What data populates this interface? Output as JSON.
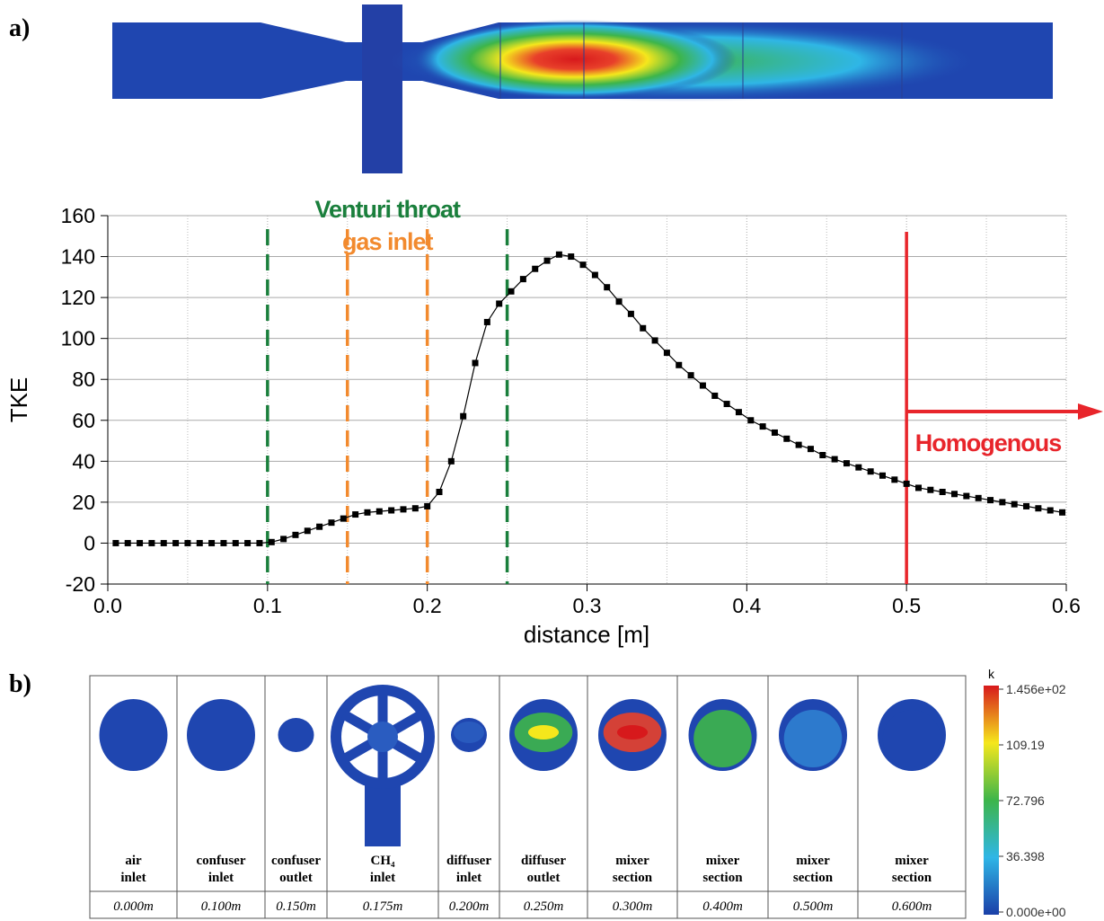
{
  "panel_labels": [
    "a)",
    "b)"
  ],
  "chart_data": {
    "type": "line",
    "x_label": "distance [m]",
    "y_label": "TKE",
    "x": [
      0.005,
      0.0125,
      0.02,
      0.0275,
      0.035,
      0.0425,
      0.05,
      0.0575,
      0.065,
      0.0725,
      0.08,
      0.0875,
      0.095,
      0.1025,
      0.11,
      0.1175,
      0.125,
      0.1325,
      0.14,
      0.1475,
      0.155,
      0.1625,
      0.17,
      0.1775,
      0.185,
      0.1925,
      0.2,
      0.2075,
      0.215,
      0.2225,
      0.23,
      0.2375,
      0.245,
      0.2525,
      0.26,
      0.2675,
      0.275,
      0.2825,
      0.29,
      0.2975,
      0.305,
      0.3125,
      0.32,
      0.3275,
      0.335,
      0.3425,
      0.35,
      0.3575,
      0.365,
      0.3725,
      0.38,
      0.3875,
      0.395,
      0.4025,
      0.41,
      0.4175,
      0.425,
      0.4325,
      0.44,
      0.4475,
      0.455,
      0.4625,
      0.47,
      0.4775,
      0.485,
      0.4925,
      0.5,
      0.5075,
      0.515,
      0.5225,
      0.53,
      0.5375,
      0.545,
      0.5525,
      0.56,
      0.5675,
      0.575,
      0.5825,
      0.59,
      0.5975
    ],
    "values": [
      0,
      0,
      0,
      0,
      0,
      0,
      0,
      0,
      0,
      0,
      0,
      0,
      0,
      0.5,
      2,
      4,
      6,
      8,
      10,
      12,
      14,
      15,
      15.5,
      16,
      16.5,
      17,
      18,
      25,
      40,
      62,
      88,
      108,
      117,
      123,
      129,
      134,
      138,
      141,
      140,
      136,
      131,
      125,
      118,
      112,
      105,
      99,
      93,
      87,
      82,
      77,
      72,
      68,
      64,
      60,
      57,
      54,
      51,
      48,
      46,
      43,
      41,
      39,
      37,
      35,
      33,
      31,
      29,
      27,
      26,
      25,
      24,
      23,
      22,
      21,
      20,
      19,
      18,
      17,
      16,
      15
    ],
    "color": "#000000",
    "xlim": [
      0,
      0.6
    ],
    "ylim": [
      -20,
      160
    ],
    "xticks": [
      {
        "value": 0,
        "label": "0.0"
      },
      0.1,
      0.2,
      0.3,
      0.4,
      0.5,
      0.6
    ],
    "yticks": [
      -20,
      0,
      20,
      40,
      60,
      80,
      100,
      120,
      140,
      160
    ],
    "grid": true,
    "markers": [
      {
        "label": "Venturi throat",
        "x": [
          0.1,
          0.25
        ],
        "color": "#1a7f3c",
        "style": "dashed"
      },
      {
        "label": "gas inlet",
        "x": [
          0.15,
          0.2
        ],
        "color": "#f28a2e",
        "style": "dashed"
      },
      {
        "label": "Homogenous",
        "x": [
          0.5
        ],
        "color": "#e8252b",
        "style": "solid"
      }
    ]
  },
  "sections": [
    {
      "label": [
        "air",
        "inlet"
      ],
      "distance": "0.000m"
    },
    {
      "label": [
        "confuser",
        "inlet"
      ],
      "distance": "0.100m"
    },
    {
      "label": [
        "confuser",
        "outlet"
      ],
      "distance": "0.150m"
    },
    {
      "label": [
        "CH₄",
        "inlet"
      ],
      "distance": "0.175m"
    },
    {
      "label": [
        "diffuser",
        "inlet"
      ],
      "distance": "0.200m"
    },
    {
      "label": [
        "diffuser",
        "outlet"
      ],
      "distance": "0.250m"
    },
    {
      "label": [
        "mixer",
        "section"
      ],
      "distance": "0.300m"
    },
    {
      "label": [
        "mixer",
        "section"
      ],
      "distance": "0.400m"
    },
    {
      "label": [
        "mixer",
        "section"
      ],
      "distance": "0.500m"
    },
    {
      "label": [
        "mixer",
        "section"
      ],
      "distance": "0.600m"
    }
  ],
  "colorbar": {
    "title": "k",
    "ticks": [
      "1.456e+02",
      "109.19",
      "72.796",
      "36.398",
      "0.000e+00"
    ]
  }
}
